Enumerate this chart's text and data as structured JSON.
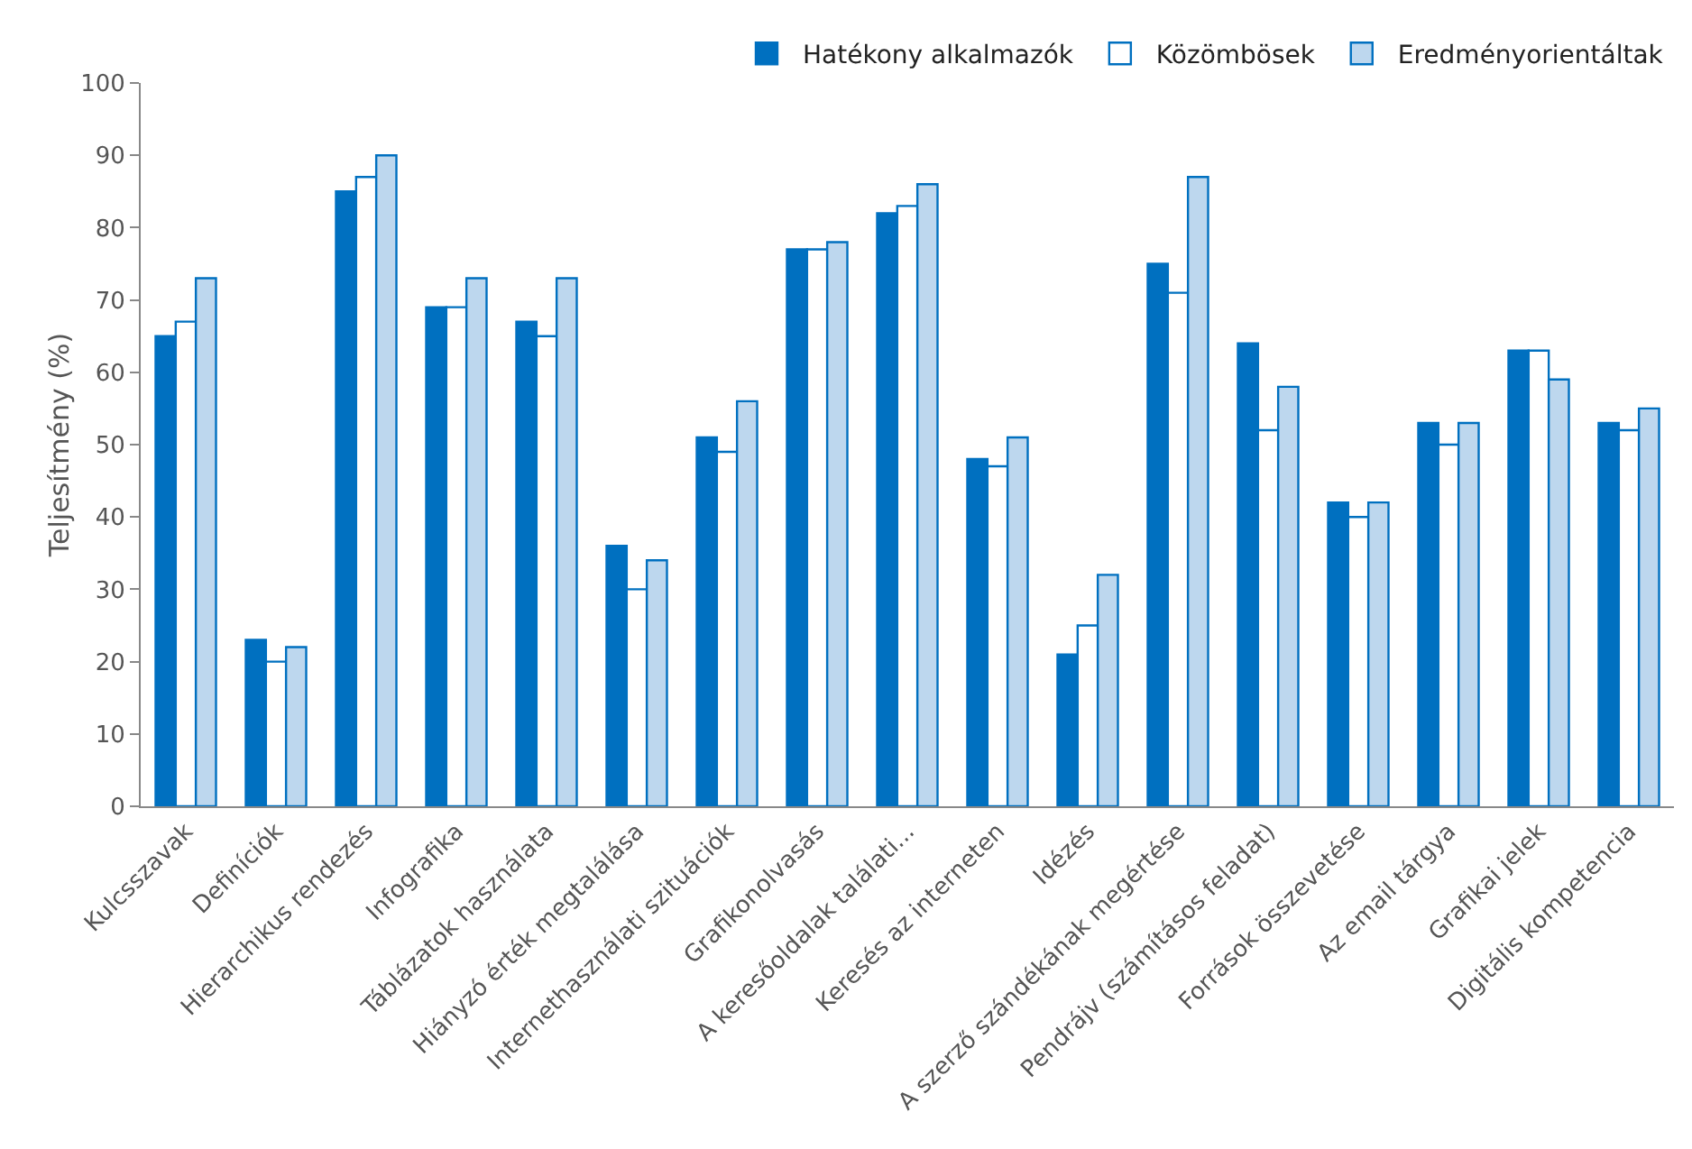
{
  "chart_data": {
    "type": "bar",
    "ylabel": "Teljesítmény (%)",
    "categories": [
      "Kulcsszavak",
      "Definíciók",
      "Hierarchikus rendezés",
      "Infografika",
      "Táblázatok használata",
      "Hiányzó érték megtalálása",
      "Internethasználati szituációk",
      "Grafikonolvasás",
      "A keresőoldalak találati...",
      "Keresés az interneten",
      "Idézés",
      "A szerző szándékának megértése",
      "Pendrájv (számításos feladat)",
      "Források összevetése",
      "Az email tárgya",
      "Grafikai jelek",
      "Digitális kompetencia"
    ],
    "series": [
      {
        "name": "Hatékony alkalmazók",
        "color": "#0070c0",
        "values": [
          65,
          23,
          85,
          69,
          67,
          36,
          51,
          77,
          82,
          48,
          21,
          75,
          64,
          42,
          53,
          63,
          53
        ]
      },
      {
        "name": "Közömbösek",
        "color": "#ffffff",
        "values": [
          67,
          20,
          87,
          69,
          65,
          30,
          49,
          77,
          83,
          47,
          25,
          71,
          52,
          40,
          50,
          63,
          52
        ]
      },
      {
        "name": "Eredményorientáltak",
        "color": "#bdd7ee",
        "values": [
          73,
          22,
          90,
          73,
          73,
          34,
          56,
          78,
          86,
          51,
          32,
          87,
          58,
          42,
          53,
          59,
          55
        ]
      }
    ],
    "ylim": [
      0,
      100
    ],
    "yticks": [
      0,
      10,
      20,
      30,
      40,
      50,
      60,
      70,
      80,
      90,
      100
    ],
    "grid": false,
    "legend": "top right"
  }
}
